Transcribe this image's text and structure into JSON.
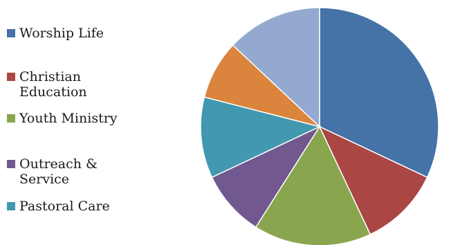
{
  "chart_data": {
    "type": "pie",
    "title": "",
    "slices": [
      {
        "label": "Worship Life",
        "value": 32,
        "color": "#4572A7"
      },
      {
        "label": "Christian\nEducation",
        "value": 11,
        "color": "#AA4643"
      },
      {
        "label": "Youth Ministry",
        "value": 16,
        "color": "#89A54E"
      },
      {
        "label": "Outreach &\nService",
        "value": 9,
        "color": "#71588F"
      },
      {
        "label": "Pastoral Care",
        "value": 11,
        "color": "#4198AF"
      },
      {
        "label": "",
        "value": 8,
        "color": "#DB843D"
      },
      {
        "label": "",
        "value": 13,
        "color": "#93A9CF"
      }
    ],
    "legend_position": "left"
  }
}
